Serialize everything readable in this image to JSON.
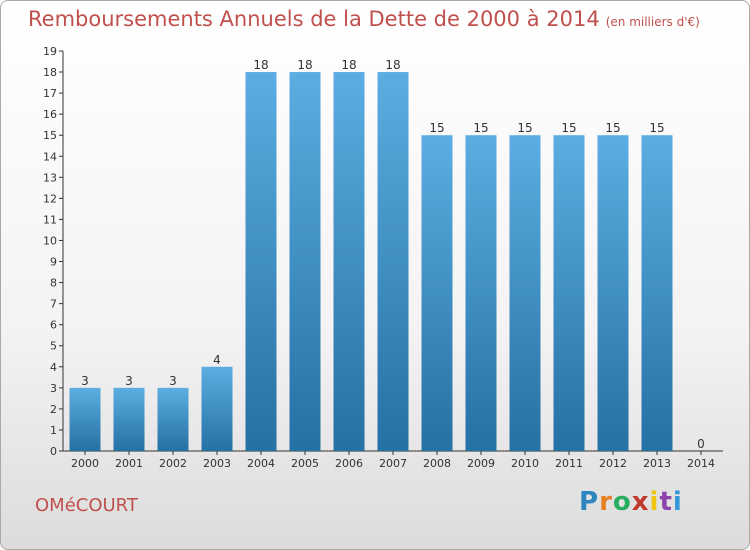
{
  "title": {
    "main": "Remboursements Annuels de la Dette de 2000 à 2014",
    "unit": "(en milliers d'€)"
  },
  "footer": {
    "town": "OMéCOURT",
    "logo": "Proxiti"
  },
  "colors": {
    "bar_top": "#5dade2",
    "bar_bottom": "#2471a3",
    "title": "#c0504d",
    "axis": "#333333"
  },
  "chart_data": {
    "type": "bar",
    "title": "Remboursements Annuels de la Dette de 2000 à 2014",
    "xlabel": "",
    "ylabel": "",
    "ylim": [
      0,
      19
    ],
    "yticks": [
      0,
      1,
      2,
      3,
      4,
      5,
      6,
      7,
      8,
      9,
      10,
      11,
      12,
      13,
      14,
      15,
      16,
      17,
      18,
      19
    ],
    "grid": false,
    "categories": [
      "2000",
      "2001",
      "2002",
      "2003",
      "2004",
      "2005",
      "2006",
      "2007",
      "2008",
      "2009",
      "2010",
      "2011",
      "2012",
      "2013",
      "2014"
    ],
    "values": [
      3,
      3,
      3,
      4,
      18,
      18,
      18,
      18,
      15,
      15,
      15,
      15,
      15,
      15,
      0
    ],
    "data_labels": [
      "3",
      "3",
      "3",
      "4",
      "18",
      "18",
      "18",
      "18",
      "15",
      "15",
      "15",
      "15",
      "15",
      "15",
      "0"
    ]
  }
}
